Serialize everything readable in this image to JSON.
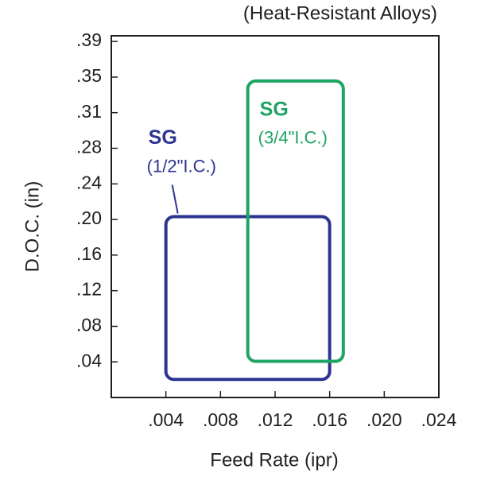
{
  "chart_data": {
    "type": "range-box",
    "title": "(Heat-Resistant Alloys)",
    "x_label": "Feed Rate (ipr)",
    "y_label": "D.O.C. (in)",
    "xlim": [
      0,
      0.024
    ],
    "ylim": [
      0,
      0.4
    ],
    "xticks": [
      {
        "value": 0.004,
        "label": ".004"
      },
      {
        "value": 0.008,
        "label": ".008"
      },
      {
        "value": 0.012,
        "label": ".012"
      },
      {
        "value": 0.016,
        "label": ".016"
      },
      {
        "value": 0.02,
        "label": ".020"
      },
      {
        "value": 0.024,
        "label": ".024"
      }
    ],
    "yticks": [
      {
        "value": 0.0394,
        "label": ".04"
      },
      {
        "value": 0.0787,
        "label": ".08"
      },
      {
        "value": 0.1181,
        "label": ".12"
      },
      {
        "value": 0.1575,
        "label": ".16"
      },
      {
        "value": 0.1969,
        "label": ".20"
      },
      {
        "value": 0.2362,
        "label": ".24"
      },
      {
        "value": 0.2756,
        "label": ".28"
      },
      {
        "value": 0.315,
        "label": ".31"
      },
      {
        "value": 0.3543,
        "label": ".35"
      },
      {
        "value": 0.3937,
        "label": ".39"
      }
    ],
    "series": [
      {
        "name": "SG",
        "label": "(1/2\"I.C.)",
        "color": "#2e3590",
        "x": [
          0.004,
          0.016
        ],
        "y": [
          0.02,
          0.2
        ]
      },
      {
        "name": "SG",
        "label": "(3/4\"I.C.)",
        "color": "#1ea463",
        "x": [
          0.01,
          0.017
        ],
        "y": [
          0.04,
          0.35
        ]
      }
    ]
  }
}
